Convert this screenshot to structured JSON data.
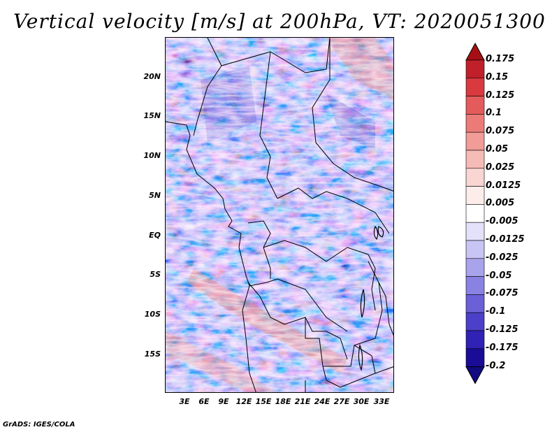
{
  "title": "Vertical velocity [m/s] at 200hPa, VT: 2020051300",
  "footer": "GrADS: IGES/COLA",
  "lat_ticks": [
    "20N",
    "15N",
    "10N",
    "5N",
    "EQ",
    "5S",
    "10S",
    "15S"
  ],
  "lon_ticks": [
    "3E",
    "6E",
    "9E",
    "12E",
    "15E",
    "18E",
    "21E",
    "24E",
    "27E",
    "30E",
    "33E"
  ],
  "colorbar": {
    "labels": [
      "0.175",
      "0.15",
      "0.125",
      "0.1",
      "0.075",
      "0.05",
      "0.025",
      "0.0125",
      "0.005",
      "-0.005",
      "-0.0125",
      "-0.025",
      "-0.05",
      "-0.075",
      "-0.1",
      "-0.125",
      "-0.175",
      "-0.2"
    ],
    "colors": [
      "#a50f15",
      "#c0202a",
      "#d83a3f",
      "#e45b5b",
      "#ec7b78",
      "#f19c97",
      "#f5bbb6",
      "#f9d6d2",
      "#fcecea",
      "#ffffff",
      "#e4e2fa",
      "#c8c4f4",
      "#a9a3ec",
      "#8a82e3",
      "#6b60d8",
      "#4c3fc9",
      "#3022b4",
      "#1a0c96",
      "#110a80"
    ]
  }
}
